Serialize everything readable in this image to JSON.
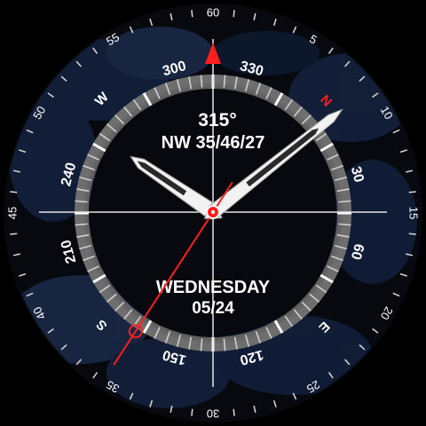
{
  "watch": {
    "bezel_minute_labels": [
      "60",
      "5",
      "10",
      "15",
      "20",
      "25",
      "30",
      "35",
      "40",
      "45",
      "50",
      "55"
    ],
    "compass": {
      "heading_text": "315°",
      "direction_text": "NW 35/46/27",
      "cardinals": {
        "n": "N",
        "e": "E",
        "s": "S",
        "w": "W"
      },
      "degree_labels": [
        "30",
        "60",
        "120",
        "150",
        "210",
        "240",
        "300",
        "330"
      ]
    },
    "date": {
      "weekday": "WEDNESDAY",
      "date": "05/24"
    },
    "time": {
      "hour": 10,
      "minute": 8,
      "second": 35.5
    },
    "colors": {
      "accent_red": "#ff1e1e",
      "dial_bg": "#07090f",
      "camo_blue": "#15223c",
      "hand_white": "#f2f2f2",
      "ring_gray": "#8a8a8a"
    }
  }
}
